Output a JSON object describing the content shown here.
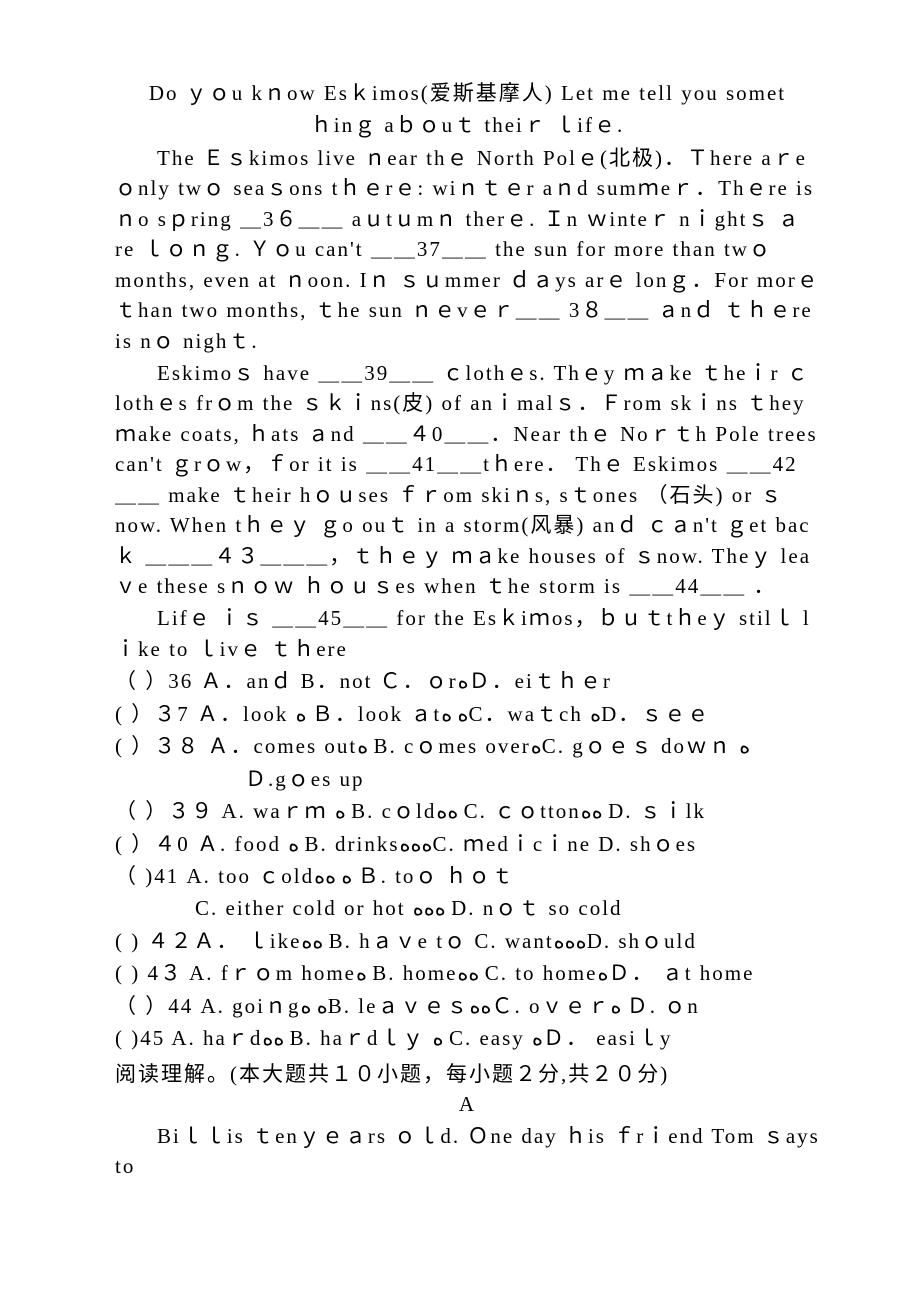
{
  "passage": {
    "line1": "Do ｙｏu kｎow Esｋimos(爱斯基摩人)  Let me  tell  you somet",
    "line2": "ｈinｇ aｂｏuｔ theiｒ ｌifｅ.",
    "para1": "The Ｅｓkimos live ｎear thｅ North  Polｅ(北极)．Ｔhere aｒe ｏnly twｏ seaｓons tｈｅrｅ: wiｎｔｅr aｎd sumｍeｒ．Thｅre is ｎo sｐring ＿3６＿＿ aｕtｕmｎ therｅ. Ｉn ｗinteｒ nｉghtｓ ａre ｌｏｎｇ. Ｙｏu can't ＿＿37＿＿ the sun for more than twｏ months, even at ｎoon. Iｎ ｓｕmmer ｄａys arｅ lonｇ．For morｅ ｔhan two months, ｔhe sun ｎｅvｅｒ＿＿ 3８＿＿ ａnｄ ｔｈｅre  is nｏ nighｔ.",
    "para2": "Eskimoｓ have ＿＿39＿＿ ｃlothｅs. Thｅy ｍａke ｔheｉr ｃlothｅs frｏm the ｓｋｉns(皮) of anｉmalｓ．Ｆrom skｉns ｔhey ｍake coats, ｈats ａnd ＿＿４0＿＿．Near thｅ Noｒｔh Pole trees can't ｇrｏw，ｆor it is ＿＿41＿＿tｈere． Thｅ Eskimos ＿＿42＿＿ make ｔheir hｏｕses ｆｒom skiｎs, sｔones （石头) or ｓnow. When tｈｅｙ ｇo ouｔ in a storm(风暴)  anｄ ｃａn't ｇet bacｋ ＿＿＿４３＿＿＿，ｔｈｅｙ ｍａke  houses of ｓnow. Theｙ leaｖe these sｎｏｗ ｈｏｕｓes when ｔhe storm is  ＿＿44＿＿ ．",
    "para3": "Lifｅ ｉｓ ＿＿45＿＿ for the  Esｋiｍos，ｂｕｔtｈeｙ stilｌ lｉke to ｌivｅ ｔｈere"
  },
  "questions": {
    "q36": "（  ）36 Ａ．anｄ       B．not      Ｃ．ｏrﻩＤ．eiｔｈｅr",
    "q37": "(   ）３7  Ａ．look  ﻩ Ｂ．look ａtﻩ ﻩC．waｔch ﻩD．ｓｅｅ",
    "q38": "(   ）３８ Ａ．comes outﻩ B. cｏmes overﻩC. gｏｅｓ doｗｎ ﻩ",
    "q38b": "Ｄ.gｏes up",
    "q39": "（  ）３９ A. waｒｍ  ﻩ  B. cｏldﻩﻩ C. ｃｏttonﻩﻩ D. ｓｉlk",
    "q40": "(  ）４0 Ａ. food  ﻩ B. drinksﻩﻩﻩC. ｍedｉcｉne    D. shｏes",
    "q41": "（   )41  A.  too ｃoldﻩ ﻩﻩ  Ｂ. toｏ ｈｏｔ",
    "q41b": "C.  either  cold or  hot ﻩﻩﻩ  D. nｏｔ so  cold",
    "q42": "(   )  ４２Ａ． ｌikeﻩﻩ B. hａｖe tｏ   C. wantﻩﻩﻩD. shｏuld",
    "q43": "(   )  4３ A. fｒｏm homeﻩ B. homeﻩﻩ C. to homeﻩＤ． ａt home",
    "q44": "（   ）44 A.  goiｎgﻩ ﻩB. leａｖｅｓﻩﻩＣ. oｖｅｒﻩ   Ｄ.  ｏn",
    "q45": "(   )45  A. haｒdﻩﻩ  B. haｒdｌｙ  ﻩ C.  easy   ﻩＤ． easiｌy"
  },
  "section": {
    "title": "阅读理解。(本大题共１０小题，每小题２分,共２０分)",
    "letter": "A",
    "readingA_line1": "Biｌｌis ｔenｙｅａrs ｏｌd. Ｏne day ｈis ｆrｉend Tom ｓays to"
  }
}
